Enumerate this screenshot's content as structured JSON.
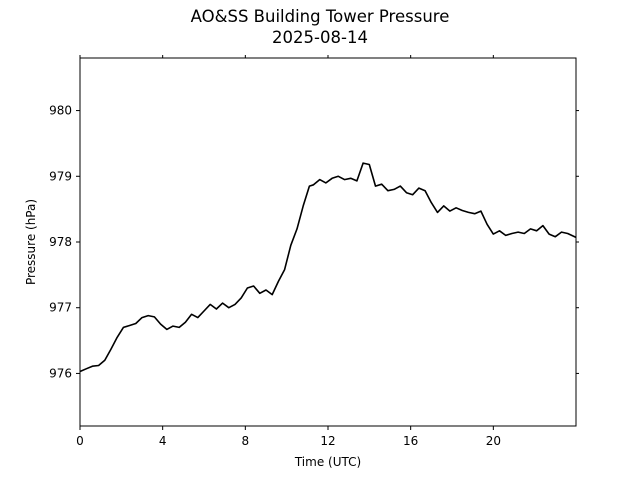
{
  "chart_data": {
    "type": "line",
    "title": "AO&SS Building Tower Pressure",
    "subtitle": "2025-08-14",
    "xlabel": "Time (UTC)",
    "ylabel": "Pressure (hPa)",
    "xlim": [
      0,
      24
    ],
    "ylim": [
      975.2,
      980.8
    ],
    "xticks": [
      0,
      4,
      8,
      12,
      16,
      20
    ],
    "yticks": [
      976,
      977,
      978,
      979,
      980
    ],
    "grid": false,
    "legend": "none",
    "line_color": "#000000",
    "series": [
      {
        "x": [
          0,
          0.3,
          0.6,
          0.9,
          1.2,
          1.5,
          1.8,
          2.1,
          2.4,
          2.7,
          3.0,
          3.3,
          3.6,
          3.9,
          4.2,
          4.5,
          4.8,
          5.1,
          5.4,
          5.7,
          6.0,
          6.3,
          6.6,
          6.9,
          7.2,
          7.5,
          7.8,
          8.1,
          8.4,
          8.7,
          9.0,
          9.3,
          9.6,
          9.9,
          10.2,
          10.5,
          10.8,
          11.1,
          11.3,
          11.6,
          11.9,
          12.2,
          12.5,
          12.8,
          13.1,
          13.4,
          13.7,
          14.0,
          14.3,
          14.6,
          14.9,
          15.2,
          15.5,
          15.8,
          16.1,
          16.4,
          16.7,
          17.0,
          17.3,
          17.6,
          17.9,
          18.2,
          18.5,
          18.8,
          19.1,
          19.4,
          19.7,
          20.0,
          20.3,
          20.6,
          20.9,
          21.2,
          21.5,
          21.8,
          22.1,
          22.4,
          22.7,
          23.0,
          23.3,
          23.6,
          24.0
        ],
        "values": [
          976.03,
          976.07,
          976.11,
          976.12,
          976.2,
          976.37,
          976.55,
          976.7,
          976.73,
          976.76,
          976.85,
          976.88,
          976.86,
          976.75,
          976.67,
          976.72,
          976.7,
          976.78,
          976.9,
          976.85,
          976.95,
          977.05,
          976.98,
          977.07,
          977.0,
          977.05,
          977.15,
          977.3,
          977.33,
          977.22,
          977.27,
          977.2,
          977.4,
          977.58,
          977.95,
          978.2,
          978.55,
          978.85,
          978.87,
          978.95,
          978.9,
          978.97,
          979.0,
          978.95,
          978.97,
          978.93,
          979.2,
          979.18,
          978.85,
          978.88,
          978.78,
          978.8,
          978.85,
          978.75,
          978.72,
          978.82,
          978.78,
          978.6,
          978.45,
          978.55,
          978.47,
          978.52,
          978.48,
          978.45,
          978.43,
          978.47,
          978.27,
          978.12,
          978.17,
          978.1,
          978.13,
          978.15,
          978.13,
          978.2,
          978.17,
          978.25,
          978.12,
          978.08,
          978.15,
          978.13,
          978.07
        ]
      }
    ]
  }
}
